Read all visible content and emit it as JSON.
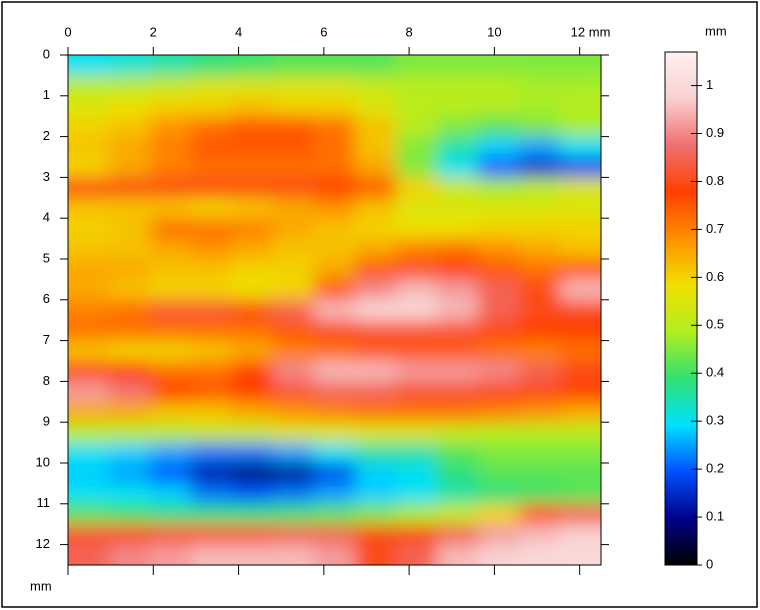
{
  "chart_data": {
    "type": "heatmap",
    "ylabel": "mm",
    "zlabel": "mm",
    "xlim": [
      0,
      12.5
    ],
    "ylim": [
      0,
      12.5
    ],
    "xticks": [
      0,
      2,
      4,
      6,
      8,
      10,
      {
        "value": 12,
        "label": "12 mm"
      }
    ],
    "yticks": [
      0,
      1,
      2,
      3,
      4,
      5,
      6,
      7,
      8,
      9,
      10,
      11,
      12
    ],
    "zlim": [
      0,
      1.07
    ],
    "zticks": [
      0,
      0.1,
      0.2,
      0.3,
      0.4,
      0.5,
      0.6,
      0.7,
      0.8,
      0.9,
      1
    ],
    "colors": [
      "#000000",
      "#00008b",
      "#0050ff",
      "#00e0ff",
      "#30e070",
      "#b0ee20",
      "#f0e000",
      "#ff9000",
      "#ff4000",
      "#f07070",
      "#f8d0d0",
      "#fff0f0"
    ],
    "z": [
      [
        0.3,
        0.32,
        0.35,
        0.38,
        0.4,
        0.42,
        0.42,
        0.42,
        0.45,
        0.45,
        0.45,
        0.45,
        0.45
      ],
      [
        0.5,
        0.5,
        0.52,
        0.55,
        0.55,
        0.55,
        0.55,
        0.52,
        0.5,
        0.5,
        0.5,
        0.48,
        0.48
      ],
      [
        0.55,
        0.58,
        0.6,
        0.6,
        0.62,
        0.6,
        0.6,
        0.55,
        0.5,
        0.5,
        0.5,
        0.48,
        0.5
      ],
      [
        0.6,
        0.62,
        0.68,
        0.72,
        0.75,
        0.75,
        0.72,
        0.62,
        0.5,
        0.45,
        0.42,
        0.45,
        0.48
      ],
      [
        0.62,
        0.65,
        0.7,
        0.75,
        0.75,
        0.75,
        0.72,
        0.62,
        0.45,
        0.35,
        0.28,
        0.25,
        0.3
      ],
      [
        0.6,
        0.65,
        0.7,
        0.72,
        0.72,
        0.72,
        0.72,
        0.65,
        0.45,
        0.3,
        0.2,
        0.15,
        0.18
      ],
      [
        0.8,
        0.8,
        0.8,
        0.8,
        0.8,
        0.8,
        0.78,
        0.75,
        0.6,
        0.52,
        0.48,
        0.5,
        0.55
      ],
      [
        0.62,
        0.62,
        0.62,
        0.6,
        0.62,
        0.65,
        0.68,
        0.62,
        0.55,
        0.55,
        0.55,
        0.55,
        0.55
      ],
      [
        0.6,
        0.62,
        0.72,
        0.72,
        0.7,
        0.65,
        0.62,
        0.6,
        0.58,
        0.58,
        0.6,
        0.6,
        0.6
      ],
      [
        0.62,
        0.62,
        0.65,
        0.68,
        0.65,
        0.62,
        0.62,
        0.65,
        0.7,
        0.72,
        0.68,
        0.65,
        0.62
      ],
      [
        0.65,
        0.65,
        0.62,
        0.62,
        0.6,
        0.6,
        0.65,
        0.75,
        0.8,
        0.78,
        0.75,
        0.72,
        0.75
      ],
      [
        0.65,
        0.62,
        0.6,
        0.6,
        0.58,
        0.6,
        0.75,
        0.9,
        0.95,
        0.92,
        0.85,
        0.8,
        0.95
      ],
      [
        0.7,
        0.72,
        0.82,
        0.82,
        0.8,
        0.85,
        0.95,
        1.0,
        1.0,
        0.95,
        0.85,
        0.8,
        0.8
      ],
      [
        0.72,
        0.72,
        0.72,
        0.72,
        0.72,
        0.75,
        0.8,
        0.82,
        0.82,
        0.82,
        0.8,
        0.78,
        0.78
      ],
      [
        0.62,
        0.6,
        0.6,
        0.62,
        0.65,
        0.7,
        0.72,
        0.75,
        0.75,
        0.75,
        0.72,
        0.7,
        0.72
      ],
      [
        0.8,
        0.78,
        0.72,
        0.72,
        0.78,
        0.9,
        0.95,
        0.95,
        0.92,
        0.92,
        0.9,
        0.85,
        0.8
      ],
      [
        0.92,
        0.88,
        0.78,
        0.75,
        0.78,
        0.82,
        0.85,
        0.85,
        0.82,
        0.82,
        0.8,
        0.8,
        0.78
      ],
      [
        0.65,
        0.65,
        0.62,
        0.62,
        0.65,
        0.68,
        0.7,
        0.72,
        0.72,
        0.72,
        0.7,
        0.68,
        0.65
      ],
      [
        0.5,
        0.5,
        0.5,
        0.52,
        0.52,
        0.55,
        0.55,
        0.55,
        0.55,
        0.52,
        0.5,
        0.5,
        0.5
      ],
      [
        0.3,
        0.28,
        0.25,
        0.22,
        0.22,
        0.25,
        0.3,
        0.35,
        0.35,
        0.42,
        0.45,
        0.45,
        0.45
      ],
      [
        0.28,
        0.25,
        0.2,
        0.12,
        0.08,
        0.1,
        0.18,
        0.28,
        0.3,
        0.38,
        0.42,
        0.42,
        0.42
      ],
      [
        0.3,
        0.3,
        0.28,
        0.22,
        0.2,
        0.22,
        0.25,
        0.28,
        0.3,
        0.35,
        0.38,
        0.4,
        0.42
      ],
      [
        0.42,
        0.4,
        0.38,
        0.38,
        0.38,
        0.4,
        0.42,
        0.45,
        0.48,
        0.52,
        0.6,
        0.75,
        0.85
      ],
      [
        0.82,
        0.8,
        0.82,
        0.82,
        0.82,
        0.85,
        0.85,
        0.8,
        0.8,
        0.85,
        0.92,
        0.95,
        0.98
      ],
      [
        0.85,
        0.9,
        0.92,
        0.95,
        0.95,
        0.95,
        0.92,
        0.8,
        0.85,
        0.95,
        0.98,
        1.0,
        1.0
      ]
    ]
  }
}
